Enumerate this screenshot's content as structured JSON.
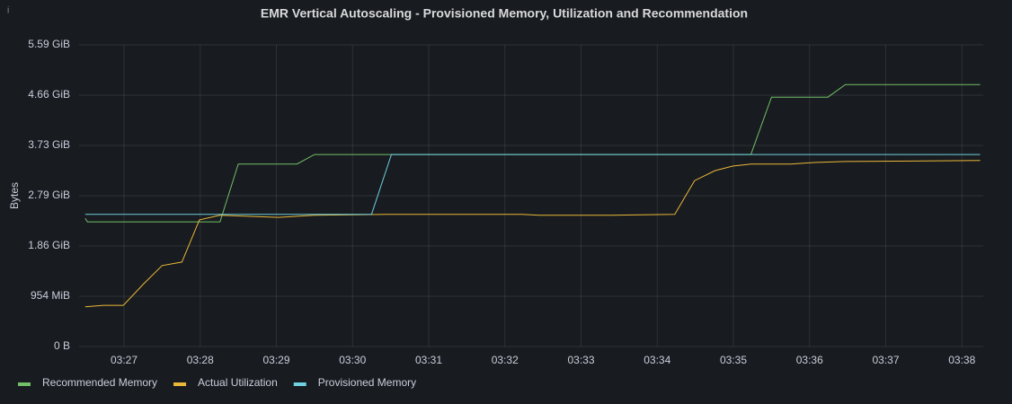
{
  "chart_data": {
    "type": "line",
    "title": "EMR Vertical Autoscaling - Provisioned Memory, Utilization and Recommendation",
    "y_label": "Bytes",
    "xlim": [
      206.41,
      218.28
    ],
    "xticks": [
      {
        "value": 207,
        "label": "03:27"
      },
      {
        "value": 208,
        "label": "03:28"
      },
      {
        "value": 209,
        "label": "03:29"
      },
      {
        "value": 210,
        "label": "03:30"
      },
      {
        "value": 211,
        "label": "03:31"
      },
      {
        "value": 212,
        "label": "03:32"
      },
      {
        "value": 213,
        "label": "03:33"
      },
      {
        "value": 214,
        "label": "03:34"
      },
      {
        "value": 215,
        "label": "03:35"
      },
      {
        "value": 216,
        "label": "03:36"
      },
      {
        "value": 217,
        "label": "03:37"
      },
      {
        "value": 218,
        "label": "03:38"
      }
    ],
    "ylim": [
      0,
      6000000000
    ],
    "yticks": [
      {
        "value": 0,
        "label": "0 B"
      },
      {
        "value": 1000000000,
        "label": "954 MiB"
      },
      {
        "value": 2000000000,
        "label": "1.86 GiB"
      },
      {
        "value": 3000000000,
        "label": "2.79 GiB"
      },
      {
        "value": 4000000000,
        "label": "3.73 GiB"
      },
      {
        "value": 5000000000,
        "label": "4.66 GiB"
      },
      {
        "value": 6000000000,
        "label": "5.59 GiB"
      }
    ],
    "grid": true,
    "legend": "bottom-left",
    "series": [
      {
        "name": "Recommended Memory",
        "color": "#73bf69",
        "x": [
          206.49,
          206.52,
          208.26,
          208.5,
          209.27,
          209.5,
          215.23,
          215.5,
          216.24,
          216.47,
          218.24
        ],
        "values": [
          2550000000,
          2480000000,
          2480000000,
          3630000000,
          3630000000,
          3820000000,
          3820000000,
          4960000000,
          4960000000,
          5210000000,
          5210000000
        ]
      },
      {
        "name": "Actual Utilization",
        "color": "#eab839",
        "x": [
          206.49,
          206.73,
          206.99,
          207.26,
          207.5,
          207.76,
          207.99,
          208.26,
          209.03,
          209.5,
          210.45,
          212.22,
          212.45,
          213.4,
          214.23,
          214.49,
          214.76,
          214.99,
          215.23,
          215.76,
          216.06,
          216.47,
          218.24
        ],
        "values": [
          790000000,
          820000000,
          820000000,
          1250000000,
          1610000000,
          1680000000,
          2520000000,
          2610000000,
          2570000000,
          2610000000,
          2630000000,
          2630000000,
          2610000000,
          2610000000,
          2630000000,
          3300000000,
          3500000000,
          3590000000,
          3630000000,
          3630000000,
          3660000000,
          3680000000,
          3700000000
        ]
      },
      {
        "name": "Provisioned Memory",
        "color": "#6ed0e0",
        "x": [
          206.49,
          210.25,
          210.51,
          218.24
        ],
        "values": [
          2630000000,
          2630000000,
          3820000000,
          3820000000
        ]
      }
    ]
  }
}
